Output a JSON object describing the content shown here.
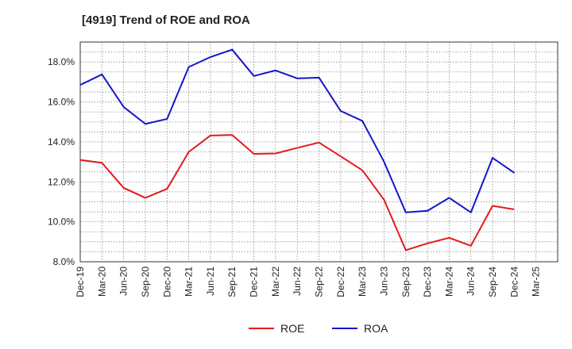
{
  "chart_data": {
    "type": "line",
    "title": "[4919]  Trend of ROE and ROA",
    "xlabel": "",
    "ylabel": "",
    "x_ticks": [
      "Dec-19",
      "Mar-20",
      "Jun-20",
      "Sep-20",
      "Dec-20",
      "Mar-21",
      "Jun-21",
      "Sep-21",
      "Dec-21",
      "Mar-22",
      "Jun-22",
      "Sep-22",
      "Dec-22",
      "Mar-23",
      "Jun-23",
      "Sep-23",
      "Dec-23",
      "Mar-24",
      "Jun-24",
      "Sep-24",
      "Dec-24",
      "Mar-25"
    ],
    "x": [
      "Dec-19",
      "Mar-20",
      "Jun-20",
      "Sep-20",
      "Dec-20",
      "Mar-21",
      "Jun-21",
      "Sep-21",
      "Dec-21",
      "Mar-22",
      "Jun-22",
      "Sep-22",
      "Dec-22",
      "Mar-23",
      "Jun-23",
      "Sep-23",
      "Dec-23",
      "Mar-24",
      "Jun-24",
      "Sep-24",
      "Dec-24"
    ],
    "y_ticks": [
      "8.0%",
      "10.0%",
      "12.0%",
      "14.0%",
      "16.0%",
      "18.0%"
    ],
    "ylim": [
      8.0,
      19.0
    ],
    "grid": true,
    "legend_position": "bottom-center",
    "series": [
      {
        "name": "ROE",
        "color": "#e31a1c",
        "values": [
          13.1,
          12.95,
          11.7,
          11.2,
          11.65,
          13.5,
          14.32,
          14.35,
          13.4,
          13.42,
          13.7,
          13.97,
          13.28,
          12.58,
          11.1,
          8.58,
          8.92,
          9.2,
          8.8,
          10.8,
          10.62
        ]
      },
      {
        "name": "ROA",
        "color": "#1515cc",
        "values": [
          16.85,
          17.38,
          15.75,
          14.9,
          15.15,
          17.75,
          18.25,
          18.62,
          17.3,
          17.58,
          17.18,
          17.22,
          15.55,
          15.05,
          13.0,
          10.47,
          10.55,
          11.2,
          10.47,
          13.2,
          12.45
        ]
      }
    ]
  }
}
